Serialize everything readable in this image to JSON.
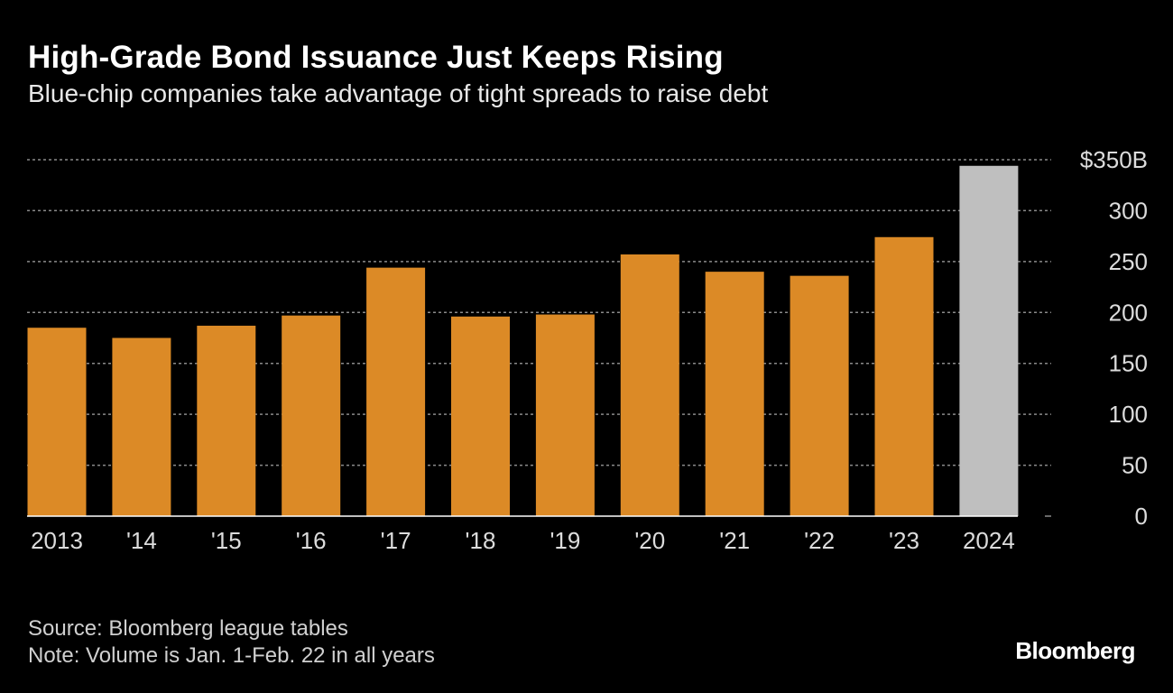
{
  "colors": {
    "bar": "#DC8A26",
    "bar_highlight": "#BFBFBF",
    "grid": "#8a8a8a",
    "axis_text": "#dcdcdc",
    "background": "#000000"
  },
  "chart_data": {
    "type": "bar",
    "title": "High-Grade Bond Issuance Just Keeps Rising",
    "subtitle": "Blue-chip companies take advantage of tight spreads to raise debt",
    "categories": [
      "2013",
      "'14",
      "'15",
      "'16",
      "'17",
      "'18",
      "'19",
      "'20",
      "'21",
      "'22",
      "'23",
      "2024"
    ],
    "values": [
      185,
      175,
      187,
      197,
      244,
      196,
      198,
      257,
      240,
      236,
      274,
      344
    ],
    "highlight_index": 11,
    "ylim": [
      0,
      350
    ],
    "yticks": [
      0,
      50,
      100,
      150,
      200,
      250,
      300,
      350
    ],
    "ytick_labels": [
      "0",
      "50",
      "100",
      "150",
      "200",
      "250",
      "300",
      "$350B"
    ],
    "xlabel": "",
    "ylabel": "",
    "grid": true,
    "y_axis_side": "right"
  },
  "footer": {
    "source": "Source: Bloomberg league tables",
    "note": "Note: Volume is Jan. 1-Feb. 22 in all years",
    "brand": "Bloomberg"
  }
}
